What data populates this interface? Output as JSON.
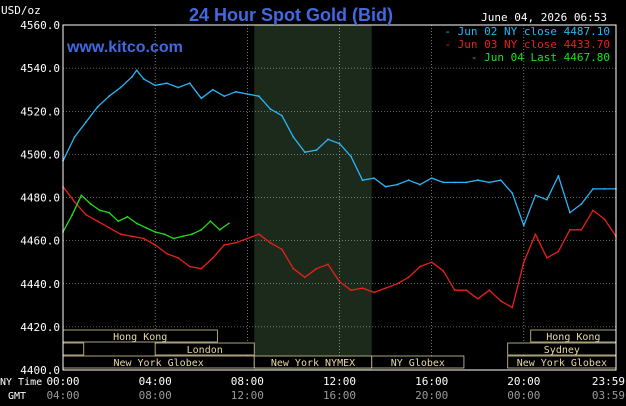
{
  "header": {
    "unit_label": "USD/oz",
    "title": "24 Hour Spot Gold (Bid)",
    "timestamp": "June 04, 2026 06:53",
    "website": "www.kitco.com"
  },
  "colors": {
    "background": "#000000",
    "title": "#4169e1",
    "website": "#4169e1",
    "axis_text": "#ffffff",
    "grid": "#ffffff",
    "shade": "#1c2a1c",
    "session_box_fill": "#000000",
    "session_box_border": "#d8c89a",
    "session_text": "#e6d8a8"
  },
  "chart_data": {
    "type": "line",
    "title": "24 Hour Spot Gold (Bid)",
    "ylabel": "USD/oz",
    "xlabel": "",
    "ylim": [
      4400,
      4560
    ],
    "yticks": [
      4400,
      4420,
      4440,
      4460,
      4480,
      4500,
      4520,
      4540,
      4560
    ],
    "ytick_labels": [
      "4400.0",
      "4420.0",
      "4440.0",
      "4460.0",
      "4480.0",
      "4500.0",
      "4520.0",
      "4540.0",
      "4560.0"
    ],
    "xlim": [
      0,
      24
    ],
    "xticks": [
      0,
      4,
      8,
      12,
      16,
      20,
      24
    ],
    "ny_time_label": "NY Time",
    "gmt_label": "GMT",
    "ny_tick_labels": [
      "00:00",
      "04:00",
      "08:00",
      "12:00",
      "16:00",
      "20:00",
      "23:59"
    ],
    "gmt_tick_labels": [
      "04:00",
      "08:00",
      "12:00",
      "16:00",
      "20:00",
      "00:00",
      "03:59"
    ],
    "grid": true,
    "legend_position": "top-right",
    "shaded_region": [
      8.3,
      13.4
    ],
    "series": [
      {
        "name": "Jun 02 NY close 4487.10",
        "color": "#29b6f6",
        "x": [
          0,
          0.5,
          1,
          1.5,
          2,
          2.5,
          3,
          3.2,
          3.5,
          4,
          4.5,
          5,
          5.5,
          6,
          6.5,
          7,
          7.5,
          8,
          8.5,
          9,
          9.5,
          10,
          10.5,
          11,
          11.5,
          12,
          12.5,
          13,
          13.5,
          14,
          14.5,
          15,
          15.5,
          16,
          16.5,
          17,
          17.5,
          18,
          18.5,
          19,
          19.5,
          20,
          20.5,
          21,
          21.5,
          22,
          22.5,
          23,
          23.5,
          24
        ],
        "values": [
          4497,
          4508,
          4515,
          4522,
          4527,
          4531,
          4536,
          4539,
          4535,
          4532,
          4533,
          4531,
          4533,
          4526,
          4530,
          4527,
          4529,
          4528,
          4527,
          4521,
          4518,
          4508,
          4501,
          4502,
          4507,
          4505,
          4499,
          4488,
          4489,
          4485,
          4486,
          4488,
          4486,
          4489,
          4487,
          4487,
          4487,
          4488,
          4487,
          4488,
          4482,
          4467,
          4481,
          4479,
          4490,
          4473,
          4477,
          4484,
          4484,
          4484
        ]
      },
      {
        "name": "Jun 03 NY close 4433.70",
        "color": "#e8201b",
        "x": [
          0,
          0.5,
          1,
          1.5,
          2,
          2.5,
          3,
          3.5,
          4,
          4.5,
          5,
          5.5,
          6,
          6.5,
          7,
          7.5,
          8,
          8.5,
          9,
          9.5,
          10,
          10.5,
          11,
          11.5,
          12,
          12.5,
          13,
          13.5,
          14,
          14.5,
          15,
          15.5,
          16,
          16.5,
          17,
          17.5,
          18,
          18.5,
          19,
          19.5,
          20,
          20.5,
          21,
          21.5,
          22,
          22.5,
          23,
          23.5,
          24
        ],
        "values": [
          4485,
          4478,
          4472,
          4469,
          4466,
          4463,
          4462,
          4461,
          4458,
          4454,
          4452,
          4448,
          4447,
          4452,
          4458,
          4459,
          4461,
          4463,
          4459,
          4456,
          4447,
          4443,
          4447,
          4449,
          4441,
          4437,
          4438,
          4436,
          4438,
          4440,
          4443,
          4448,
          4450,
          4446,
          4437,
          4437,
          4433,
          4437,
          4432,
          4429,
          4450,
          4463,
          4452,
          4455,
          4465,
          4465,
          4474,
          4470,
          4462
        ]
      },
      {
        "name": "Jun 04 Last 4467.80",
        "color": "#22dd22",
        "x": [
          0,
          0.4,
          0.8,
          1.2,
          1.6,
          2,
          2.4,
          2.8,
          3.2,
          3.6,
          4,
          4.4,
          4.8,
          5.2,
          5.6,
          6,
          6.4,
          6.8,
          7.2
        ],
        "values": [
          4464,
          4472,
          4481,
          4477,
          4474,
          4473,
          4469,
          4471,
          4468,
          4466,
          4464,
          4463,
          4461,
          4462,
          4463,
          4465,
          4469,
          4465,
          4468
        ]
      }
    ],
    "session_markers": [
      {
        "label": "Hong Kong",
        "row": 0,
        "start": 0,
        "end": 6.7
      },
      {
        "label": "Hong Kong",
        "row": 0,
        "start": 20.3,
        "end": 24
      },
      {
        "label": "London",
        "row": 1,
        "start": 0,
        "end": 0.9
      },
      {
        "label": "London",
        "row": 1,
        "start": 4,
        "end": 8.3
      },
      {
        "label": "Sydney",
        "row": 1,
        "start": 19.3,
        "end": 24
      },
      {
        "label": "New York Globex",
        "row": 2,
        "start": 0,
        "end": 8.3
      },
      {
        "label": "New York NYMEX",
        "row": 2,
        "start": 8.3,
        "end": 13.4
      },
      {
        "label": "NY Globex",
        "row": 2,
        "start": 13.4,
        "end": 17.4
      },
      {
        "label": "New York Globex",
        "row": 2,
        "start": 19.3,
        "end": 24
      }
    ]
  }
}
